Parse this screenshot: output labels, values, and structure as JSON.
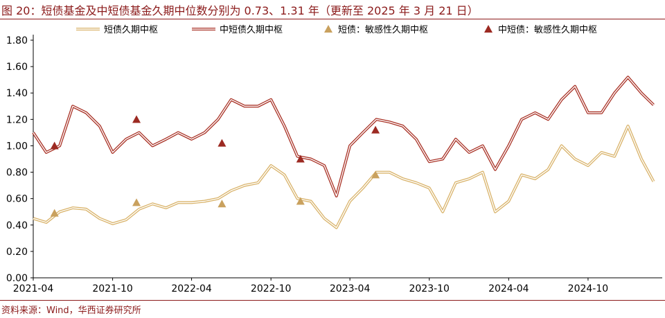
{
  "header": {
    "title": "图 20：短债基金及中短债基金久期中位数分别为 0.73、1.31 年（更新至 2025 年 3 月 21 日）"
  },
  "footer": {
    "source": "资料来源：Wind，华西证券研究所"
  },
  "colors": {
    "brand": "#8B1A1A",
    "short_line": "#D9B36A",
    "mid_line": "#A93226",
    "short_marker": "#C9A15E",
    "mid_marker": "#9C2A22"
  },
  "chart_data": {
    "type": "line",
    "title": "",
    "xlabel": "",
    "ylabel": "",
    "ylim": [
      0,
      1.8
    ],
    "y_ticks": [
      "0.00",
      "0.20",
      "0.40",
      "0.60",
      "0.80",
      "1.00",
      "1.20",
      "1.40",
      "1.60",
      "1.80"
    ],
    "x_ticks": [
      "2021-04",
      "2021-10",
      "2022-04",
      "2022-10",
      "2023-04",
      "2023-10",
      "2024-04",
      "2024-10"
    ],
    "x_range": [
      "2021-04",
      "2025-03-21"
    ],
    "grid": false,
    "legend_position": "top",
    "series": [
      {
        "name": "短债久期中枢",
        "style": "double-line",
        "x": [
          "2021-04",
          "2021-05",
          "2021-06",
          "2021-07",
          "2021-08",
          "2021-09",
          "2021-10",
          "2021-11",
          "2021-12",
          "2022-01",
          "2022-02",
          "2022-03",
          "2022-04",
          "2022-05",
          "2022-06",
          "2022-07",
          "2022-08",
          "2022-09",
          "2022-10",
          "2022-11",
          "2022-12",
          "2023-01",
          "2023-02",
          "2023-03",
          "2023-04",
          "2023-05",
          "2023-06",
          "2023-07",
          "2023-08",
          "2023-09",
          "2023-10",
          "2023-11",
          "2023-12",
          "2024-01",
          "2024-02",
          "2024-03",
          "2024-04",
          "2024-05",
          "2024-06",
          "2024-07",
          "2024-08",
          "2024-09",
          "2024-10",
          "2024-11",
          "2024-12",
          "2025-01",
          "2025-02",
          "2025-03"
        ],
        "values": [
          0.45,
          0.42,
          0.5,
          0.53,
          0.52,
          0.45,
          0.41,
          0.44,
          0.52,
          0.56,
          0.53,
          0.57,
          0.57,
          0.58,
          0.6,
          0.66,
          0.7,
          0.72,
          0.85,
          0.78,
          0.6,
          0.58,
          0.45,
          0.38,
          0.58,
          0.68,
          0.8,
          0.8,
          0.75,
          0.72,
          0.68,
          0.5,
          0.72,
          0.75,
          0.8,
          0.5,
          0.58,
          0.78,
          0.75,
          0.82,
          1.0,
          0.9,
          0.85,
          0.95,
          0.92,
          1.15,
          0.9,
          0.73
        ]
      },
      {
        "name": "中短债久期中枢",
        "style": "double-line",
        "x": [
          "2021-04",
          "2021-05",
          "2021-06",
          "2021-07",
          "2021-08",
          "2021-09",
          "2021-10",
          "2021-11",
          "2021-12",
          "2022-01",
          "2022-02",
          "2022-03",
          "2022-04",
          "2022-05",
          "2022-06",
          "2022-07",
          "2022-08",
          "2022-09",
          "2022-10",
          "2022-11",
          "2022-12",
          "2023-01",
          "2023-02",
          "2023-03",
          "2023-04",
          "2023-05",
          "2023-06",
          "2023-07",
          "2023-08",
          "2023-09",
          "2023-10",
          "2023-11",
          "2023-12",
          "2024-01",
          "2024-02",
          "2024-03",
          "2024-04",
          "2024-05",
          "2024-06",
          "2024-07",
          "2024-08",
          "2024-09",
          "2024-10",
          "2024-11",
          "2024-12",
          "2025-01",
          "2025-02",
          "2025-03"
        ],
        "values": [
          1.1,
          0.95,
          1.0,
          1.3,
          1.25,
          1.15,
          0.95,
          1.05,
          1.1,
          1.0,
          1.05,
          1.1,
          1.05,
          1.1,
          1.2,
          1.35,
          1.3,
          1.3,
          1.35,
          1.15,
          0.92,
          0.9,
          0.85,
          0.62,
          1.0,
          1.1,
          1.2,
          1.18,
          1.15,
          1.05,
          0.88,
          0.9,
          1.05,
          0.95,
          1.0,
          0.82,
          1.0,
          1.2,
          1.25,
          1.2,
          1.35,
          1.45,
          1.25,
          1.25,
          1.4,
          1.52,
          1.4,
          1.31
        ]
      },
      {
        "name": "短债：敏感性久期中枢",
        "style": "triangle",
        "x": [
          "2021-05-20",
          "2021-11-25",
          "2022-06-10",
          "2022-12-08",
          "2023-05-30"
        ],
        "values": [
          0.49,
          0.57,
          0.56,
          0.58,
          0.78
        ]
      },
      {
        "name": "中短债：敏感性久期中枢",
        "style": "triangle",
        "x": [
          "2021-05-20",
          "2021-11-25",
          "2022-06-10",
          "2022-12-08",
          "2023-05-30"
        ],
        "values": [
          1.0,
          1.2,
          1.02,
          0.9,
          1.12
        ]
      }
    ]
  }
}
